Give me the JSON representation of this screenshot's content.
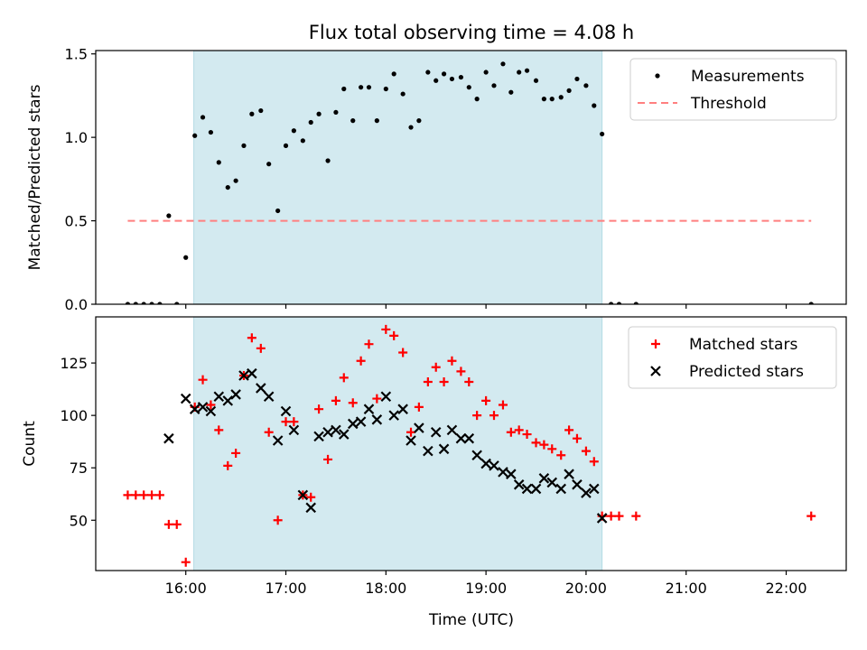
{
  "chart_data": {
    "title": "Flux total observing time = 4.08 h",
    "xlabel": "Time (UTC)",
    "x_unit": "hours UTC",
    "xlim": [
      15.1,
      22.6
    ],
    "x_ticks": [
      {
        "value": 16,
        "label": "16:00"
      },
      {
        "value": 17,
        "label": "17:00"
      },
      {
        "value": 18,
        "label": "18:00"
      },
      {
        "value": 19,
        "label": "19:00"
      },
      {
        "value": 20,
        "label": "20:00"
      },
      {
        "value": 21,
        "label": "21:00"
      },
      {
        "value": 22,
        "label": "22:00"
      }
    ],
    "shaded_interval": {
      "x0": 16.08,
      "x1": 20.16,
      "color": "#d3eaf0"
    },
    "panels": [
      {
        "type": "scatter",
        "ylabel": "Matched/Predicted stars",
        "ylim": [
          0,
          1.52
        ],
        "y_ticks": [
          0.0,
          0.5,
          1.0,
          1.5
        ],
        "y_tick_labels": [
          "0.0",
          "0.5",
          "1.0",
          "1.5"
        ],
        "legend_position": "top-right",
        "series": [
          {
            "name": "Measurements",
            "marker": "dot",
            "color": "#000000",
            "x": [
              15.42,
              15.5,
              15.58,
              15.66,
              15.74,
              15.83,
              15.91,
              16.0,
              16.09,
              16.17,
              16.25,
              16.33,
              16.42,
              16.5,
              16.58,
              16.66,
              16.75,
              16.83,
              16.92,
              17.0,
              17.08,
              17.17,
              17.25,
              17.33,
              17.42,
              17.5,
              17.58,
              17.67,
              17.75,
              17.83,
              17.91,
              18.0,
              18.08,
              18.17,
              18.25,
              18.33,
              18.42,
              18.5,
              18.58,
              18.66,
              18.75,
              18.83,
              18.91,
              19.0,
              19.08,
              19.17,
              19.25,
              19.33,
              19.41,
              19.5,
              19.58,
              19.66,
              19.75,
              19.83,
              19.91,
              20.0,
              20.08,
              20.16,
              20.25,
              20.33,
              20.5,
              22.25
            ],
            "y": [
              0.0,
              0.0,
              0.0,
              0.0,
              0.0,
              0.53,
              0.0,
              0.28,
              1.01,
              1.12,
              1.03,
              0.85,
              0.7,
              0.74,
              0.95,
              1.14,
              1.16,
              0.84,
              0.56,
              0.95,
              1.04,
              0.98,
              1.09,
              1.14,
              0.86,
              1.15,
              1.29,
              1.1,
              1.3,
              1.3,
              1.1,
              1.29,
              1.38,
              1.26,
              1.06,
              1.1,
              1.39,
              1.34,
              1.38,
              1.35,
              1.36,
              1.3,
              1.23,
              1.39,
              1.31,
              1.44,
              1.27,
              1.39,
              1.4,
              1.34,
              1.23,
              1.23,
              1.24,
              1.28,
              1.35,
              1.31,
              1.19,
              1.02,
              0.0,
              0.0,
              0.0,
              0.0
            ]
          },
          {
            "name": "Threshold",
            "marker": "dashed-line",
            "color": "#ff7f7f",
            "x": [
              15.42,
              22.25
            ],
            "y": [
              0.5,
              0.5
            ]
          }
        ]
      },
      {
        "type": "scatter",
        "ylabel": "Count",
        "ylim": [
          26,
          147
        ],
        "y_ticks": [
          50,
          75,
          100,
          125
        ],
        "y_tick_labels": [
          "50",
          "75",
          "100",
          "125"
        ],
        "legend_position": "top-right",
        "series": [
          {
            "name": "Matched stars",
            "marker": "plus",
            "color": "#ff0000",
            "x": [
              15.42,
              15.5,
              15.58,
              15.66,
              15.74,
              15.83,
              15.91,
              16.0,
              16.09,
              16.17,
              16.25,
              16.33,
              16.42,
              16.5,
              16.58,
              16.66,
              16.75,
              16.83,
              16.92,
              17.0,
              17.08,
              17.17,
              17.25,
              17.33,
              17.42,
              17.5,
              17.58,
              17.67,
              17.75,
              17.83,
              17.91,
              18.0,
              18.08,
              18.17,
              18.25,
              18.33,
              18.42,
              18.5,
              18.58,
              18.66,
              18.75,
              18.83,
              18.91,
              19.0,
              19.08,
              19.17,
              19.25,
              19.33,
              19.41,
              19.5,
              19.58,
              19.66,
              19.75,
              19.83,
              19.91,
              20.0,
              20.08,
              20.16,
              20.25,
              20.33,
              20.5,
              22.25
            ],
            "y": [
              62,
              62,
              62,
              62,
              62,
              48,
              48,
              30,
              104,
              117,
              105,
              93,
              76,
              82,
              119,
              137,
              132,
              92,
              50,
              97,
              97,
              62,
              61,
              103,
              79,
              107,
              118,
              106,
              126,
              134,
              108,
              141,
              138,
              130,
              92,
              104,
              116,
              123,
              116,
              126,
              121,
              116,
              100,
              107,
              100,
              105,
              92,
              93,
              91,
              87,
              86,
              84,
              81,
              93,
              89,
              83,
              78,
              52,
              52,
              52,
              52,
              52
            ]
          },
          {
            "name": "Predicted stars",
            "marker": "cross",
            "color": "#000000",
            "x": [
              15.83,
              16.0,
              16.09,
              16.17,
              16.25,
              16.33,
              16.42,
              16.5,
              16.58,
              16.66,
              16.75,
              16.83,
              16.92,
              17.0,
              17.08,
              17.17,
              17.25,
              17.33,
              17.42,
              17.5,
              17.58,
              17.67,
              17.75,
              17.83,
              17.91,
              18.0,
              18.08,
              18.17,
              18.25,
              18.33,
              18.42,
              18.5,
              18.58,
              18.66,
              18.75,
              18.83,
              18.91,
              19.0,
              19.08,
              19.17,
              19.25,
              19.33,
              19.41,
              19.5,
              19.58,
              19.66,
              19.75,
              19.83,
              19.91,
              20.0,
              20.08,
              20.16
            ],
            "y": [
              89,
              108,
              103,
              104,
              102,
              109,
              107,
              110,
              119,
              120,
              113,
              109,
              88,
              102,
              93,
              62,
              56,
              90,
              92,
              93,
              91,
              96,
              97,
              103,
              98,
              109,
              100,
              103,
              88,
              94,
              83,
              92,
              84,
              93,
              89,
              89,
              81,
              77,
              76,
              73,
              72,
              67,
              65,
              65,
              70,
              68,
              65,
              72,
              67,
              63,
              65,
              51
            ]
          }
        ]
      }
    ]
  }
}
